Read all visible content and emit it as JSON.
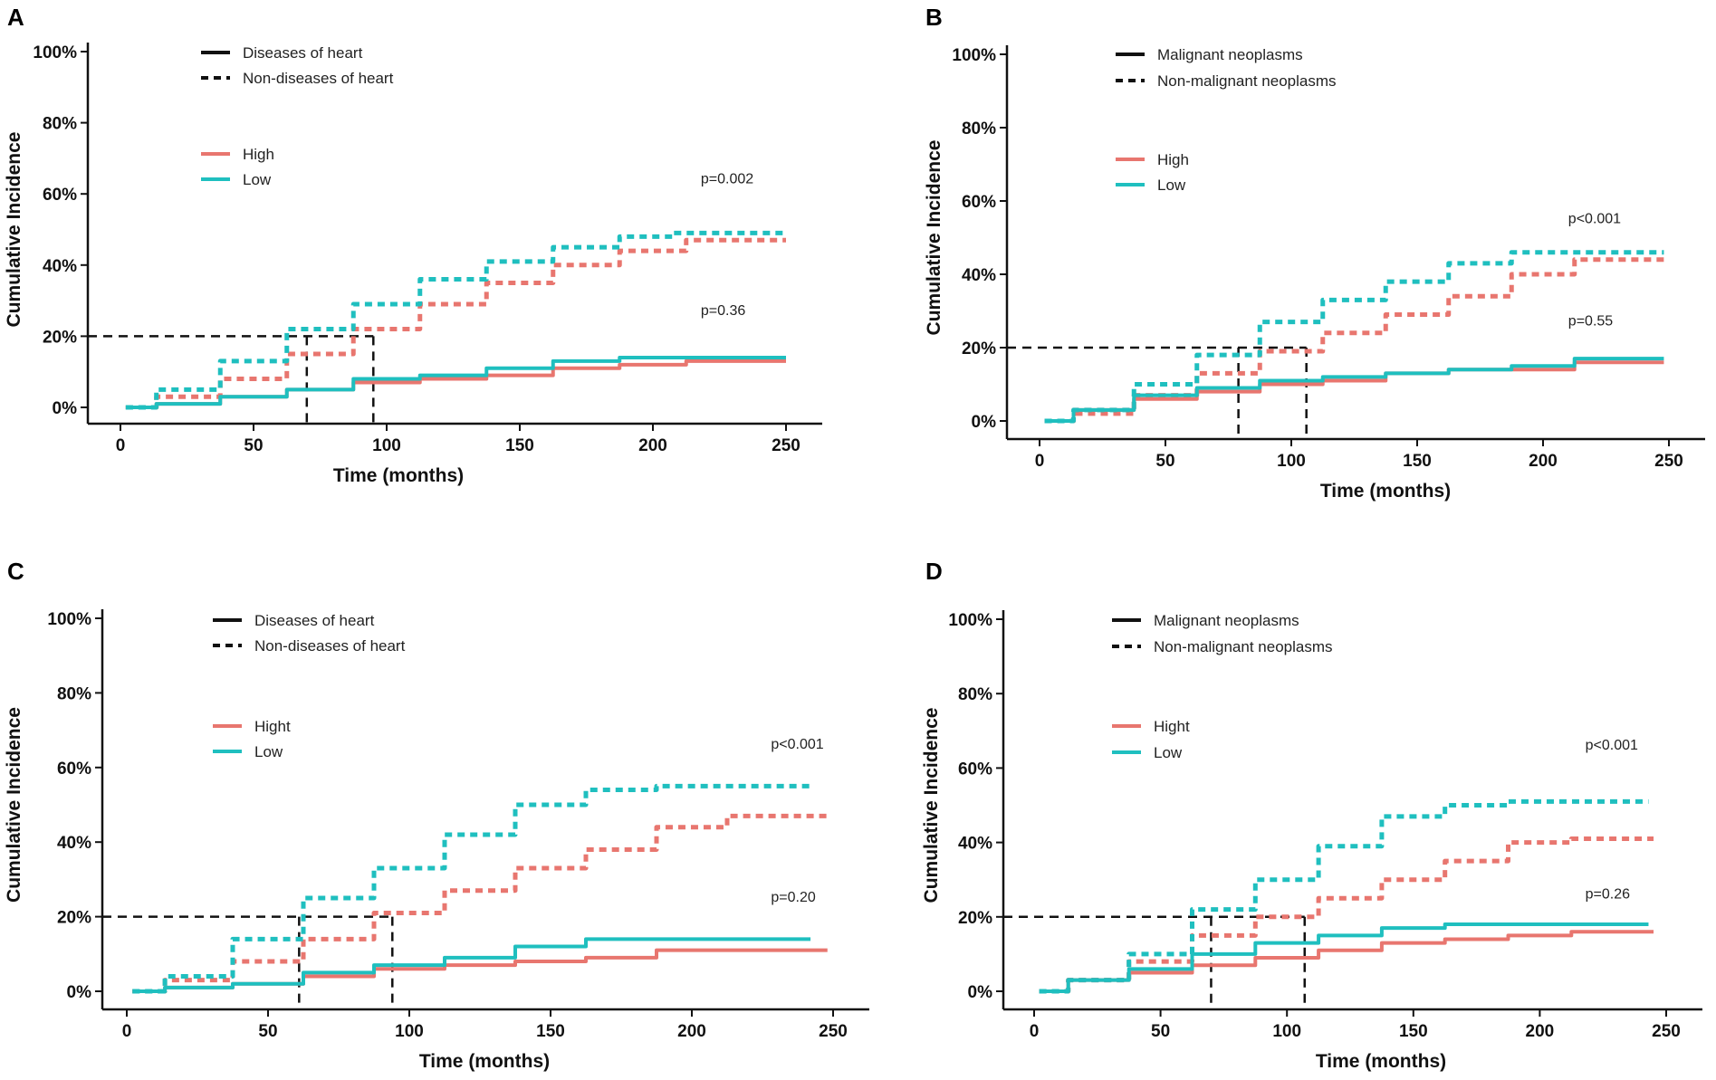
{
  "chart_data": [
    {
      "type": "line",
      "panel": "A",
      "xlabel": "Time (months)",
      "ylabel": "Cumulative Incidence",
      "xlim": [
        0,
        260
      ],
      "ylim": [
        0,
        100
      ],
      "xticks": [
        0,
        50,
        100,
        150,
        200,
        250
      ],
      "yticks": [
        "0%",
        "20%",
        "40%",
        "60%",
        "80%",
        "100%"
      ],
      "legend_linetype": [
        {
          "label": "Diseases of heart",
          "style": "solid"
        },
        {
          "label": "Non-diseases of heart",
          "style": "dashed"
        }
      ],
      "legend_group": [
        {
          "label": "High",
          "color": "#E8766F"
        },
        {
          "label": "Low",
          "color": "#1FBFBF"
        }
      ],
      "pvalues": [
        {
          "text": "p=0.002",
          "x": 218,
          "y": 63
        },
        {
          "text": "p=0.36",
          "x": 218,
          "y": 26
        }
      ],
      "reference": {
        "y": 20,
        "x1": 70,
        "x2": 95
      },
      "series": [
        {
          "name": "High - Non-diseases of heart",
          "group": "High",
          "style": "dashed",
          "x": [
            2,
            25,
            50,
            75,
            100,
            125,
            150,
            175,
            200,
            225,
            250
          ],
          "y": [
            0,
            3,
            8,
            15,
            22,
            29,
            35,
            40,
            44,
            47,
            47
          ]
        },
        {
          "name": "Low - Non-diseases of heart",
          "group": "Low",
          "style": "dashed",
          "x": [
            2,
            25,
            50,
            75,
            100,
            125,
            150,
            175,
            200,
            215,
            250
          ],
          "y": [
            0,
            5,
            13,
            22,
            29,
            36,
            41,
            45,
            48,
            49,
            49
          ]
        },
        {
          "name": "High - Diseases of heart",
          "group": "High",
          "style": "solid",
          "x": [
            2,
            25,
            50,
            75,
            100,
            125,
            150,
            175,
            200,
            225,
            250
          ],
          "y": [
            0,
            1,
            3,
            5,
            7,
            8,
            9,
            11,
            12,
            13,
            13
          ]
        },
        {
          "name": "Low - Diseases of heart",
          "group": "Low",
          "style": "solid",
          "x": [
            2,
            25,
            50,
            75,
            100,
            125,
            150,
            175,
            200,
            225,
            250
          ],
          "y": [
            0,
            1,
            3,
            5,
            8,
            9,
            11,
            13,
            14,
            14,
            14
          ]
        }
      ]
    },
    {
      "type": "line",
      "panel": "B",
      "xlabel": "Time (months)",
      "ylabel": "Cumulative Incidence",
      "xlim": [
        0,
        260
      ],
      "ylim": [
        0,
        100
      ],
      "xticks": [
        0,
        50,
        100,
        150,
        200,
        250
      ],
      "yticks": [
        "0%",
        "20%",
        "40%",
        "60%",
        "80%",
        "100%"
      ],
      "legend_linetype": [
        {
          "label": "Malignant neoplasms",
          "style": "solid"
        },
        {
          "label": "Non-malignant neoplasms",
          "style": "dashed"
        }
      ],
      "legend_group": [
        {
          "label": "High",
          "color": "#E8766F"
        },
        {
          "label": "Low",
          "color": "#1FBFBF"
        }
      ],
      "pvalues": [
        {
          "text": "p<0.001",
          "x": 210,
          "y": 54
        },
        {
          "text": "p=0.55",
          "x": 210,
          "y": 26
        }
      ],
      "reference": {
        "y": 20,
        "x1": 79,
        "x2": 106
      },
      "series": [
        {
          "name": "High - Non-malignant neoplasms",
          "group": "High",
          "style": "dashed",
          "x": [
            2,
            25,
            50,
            75,
            100,
            125,
            150,
            175,
            200,
            225,
            248
          ],
          "y": [
            0,
            2,
            7,
            13,
            19,
            24,
            29,
            34,
            40,
            44,
            44
          ]
        },
        {
          "name": "Low - Non-malignant neoplasms",
          "group": "Low",
          "style": "dashed",
          "x": [
            2,
            25,
            50,
            75,
            100,
            125,
            150,
            175,
            200,
            225,
            248
          ],
          "y": [
            0,
            3,
            10,
            18,
            27,
            33,
            38,
            43,
            46,
            46,
            46
          ]
        },
        {
          "name": "High - Malignant neoplasms",
          "group": "High",
          "style": "solid",
          "x": [
            2,
            25,
            50,
            75,
            100,
            125,
            150,
            175,
            200,
            225,
            248
          ],
          "y": [
            0,
            3,
            6,
            8,
            10,
            11,
            13,
            14,
            14,
            16,
            16
          ]
        },
        {
          "name": "Low - Malignant neoplasms",
          "group": "Low",
          "style": "solid",
          "x": [
            2,
            25,
            50,
            75,
            100,
            125,
            150,
            175,
            200,
            225,
            248
          ],
          "y": [
            0,
            3,
            7,
            9,
            11,
            12,
            13,
            14,
            15,
            17,
            17
          ]
        }
      ]
    },
    {
      "type": "line",
      "panel": "C",
      "xlabel": "Time (months)",
      "ylabel": "Cumulative Incidence",
      "xlim": [
        0,
        260
      ],
      "ylim": [
        0,
        100
      ],
      "xticks": [
        0,
        50,
        100,
        150,
        200,
        250
      ],
      "yticks": [
        "0%",
        "20%",
        "40%",
        "60%",
        "80%",
        "100%"
      ],
      "legend_linetype": [
        {
          "label": "Diseases of heart",
          "style": "solid"
        },
        {
          "label": "Non-diseases of heart",
          "style": "dashed"
        }
      ],
      "legend_group": [
        {
          "label": "Hight",
          "color": "#E8766F"
        },
        {
          "label": "Low",
          "color": "#1FBFBF"
        }
      ],
      "pvalues": [
        {
          "text": "p<0.001",
          "x": 228,
          "y": 65
        },
        {
          "text": "p=0.20",
          "x": 228,
          "y": 24
        }
      ],
      "reference": {
        "y": 20,
        "x1": 61,
        "x2": 94
      },
      "series": [
        {
          "name": "Hight - Non-diseases of heart",
          "group": "High",
          "style": "dashed",
          "x": [
            2,
            25,
            50,
            75,
            100,
            125,
            150,
            175,
            200,
            225,
            248
          ],
          "y": [
            0,
            3,
            8,
            14,
            21,
            27,
            33,
            38,
            44,
            47,
            47
          ]
        },
        {
          "name": "Low - Non-diseases of heart",
          "group": "Low",
          "style": "dashed",
          "x": [
            2,
            25,
            50,
            75,
            100,
            125,
            150,
            175,
            200,
            225,
            242
          ],
          "y": [
            0,
            4,
            14,
            25,
            33,
            42,
            50,
            54,
            55,
            55,
            55
          ]
        },
        {
          "name": "Hight - Diseases of heart",
          "group": "High",
          "style": "solid",
          "x": [
            2,
            25,
            50,
            75,
            100,
            125,
            150,
            175,
            200,
            225,
            248
          ],
          "y": [
            0,
            1,
            2,
            4,
            6,
            7,
            8,
            9,
            11,
            11,
            11
          ]
        },
        {
          "name": "Low - Diseases of heart",
          "group": "Low",
          "style": "solid",
          "x": [
            2,
            25,
            50,
            75,
            100,
            125,
            150,
            175,
            200,
            225,
            242
          ],
          "y": [
            0,
            1,
            2,
            5,
            7,
            9,
            12,
            14,
            14,
            14,
            14
          ]
        }
      ]
    },
    {
      "type": "line",
      "panel": "D",
      "xlabel": "Time (months)",
      "ylabel": "Cumulative Incidence",
      "xlim": [
        0,
        260
      ],
      "ylim": [
        0,
        100
      ],
      "xticks": [
        0,
        50,
        100,
        150,
        200,
        250
      ],
      "yticks": [
        "0%",
        "20%",
        "40%",
        "60%",
        "80%",
        "100%"
      ],
      "legend_linetype": [
        {
          "label": "Malignant neoplasms",
          "style": "solid"
        },
        {
          "label": "Non-malignant neoplasms",
          "style": "dashed"
        }
      ],
      "legend_group": [
        {
          "label": "Hight",
          "color": "#E8766F"
        },
        {
          "label": "Low",
          "color": "#1FBFBF"
        }
      ],
      "pvalues": [
        {
          "text": "p<0.001",
          "x": 218,
          "y": 65
        },
        {
          "text": "p=0.26",
          "x": 218,
          "y": 25
        }
      ],
      "reference": {
        "y": 20,
        "x1": 70,
        "x2": 107
      },
      "series": [
        {
          "name": "Hight - Non-malignant neoplasms",
          "group": "High",
          "style": "dashed",
          "x": [
            2,
            25,
            50,
            75,
            100,
            125,
            150,
            175,
            200,
            225,
            245
          ],
          "y": [
            0,
            3,
            8,
            15,
            20,
            25,
            30,
            35,
            40,
            41,
            41
          ]
        },
        {
          "name": "Low - Non-malignant neoplasms",
          "group": "Low",
          "style": "dashed",
          "x": [
            2,
            25,
            50,
            75,
            100,
            125,
            150,
            175,
            200,
            225,
            243
          ],
          "y": [
            0,
            3,
            10,
            22,
            30,
            39,
            47,
            50,
            51,
            51,
            51
          ]
        },
        {
          "name": "Hight - Malignant neoplasms",
          "group": "High",
          "style": "solid",
          "x": [
            2,
            25,
            50,
            75,
            100,
            125,
            150,
            175,
            200,
            225,
            245
          ],
          "y": [
            0,
            3,
            5,
            7,
            9,
            11,
            13,
            14,
            15,
            16,
            16
          ]
        },
        {
          "name": "Low - Malignant neoplasms",
          "group": "Low",
          "style": "solid",
          "x": [
            2,
            25,
            50,
            75,
            100,
            125,
            150,
            175,
            200,
            225,
            243
          ],
          "y": [
            0,
            3,
            6,
            10,
            13,
            15,
            17,
            18,
            18,
            18,
            18
          ]
        }
      ]
    }
  ]
}
